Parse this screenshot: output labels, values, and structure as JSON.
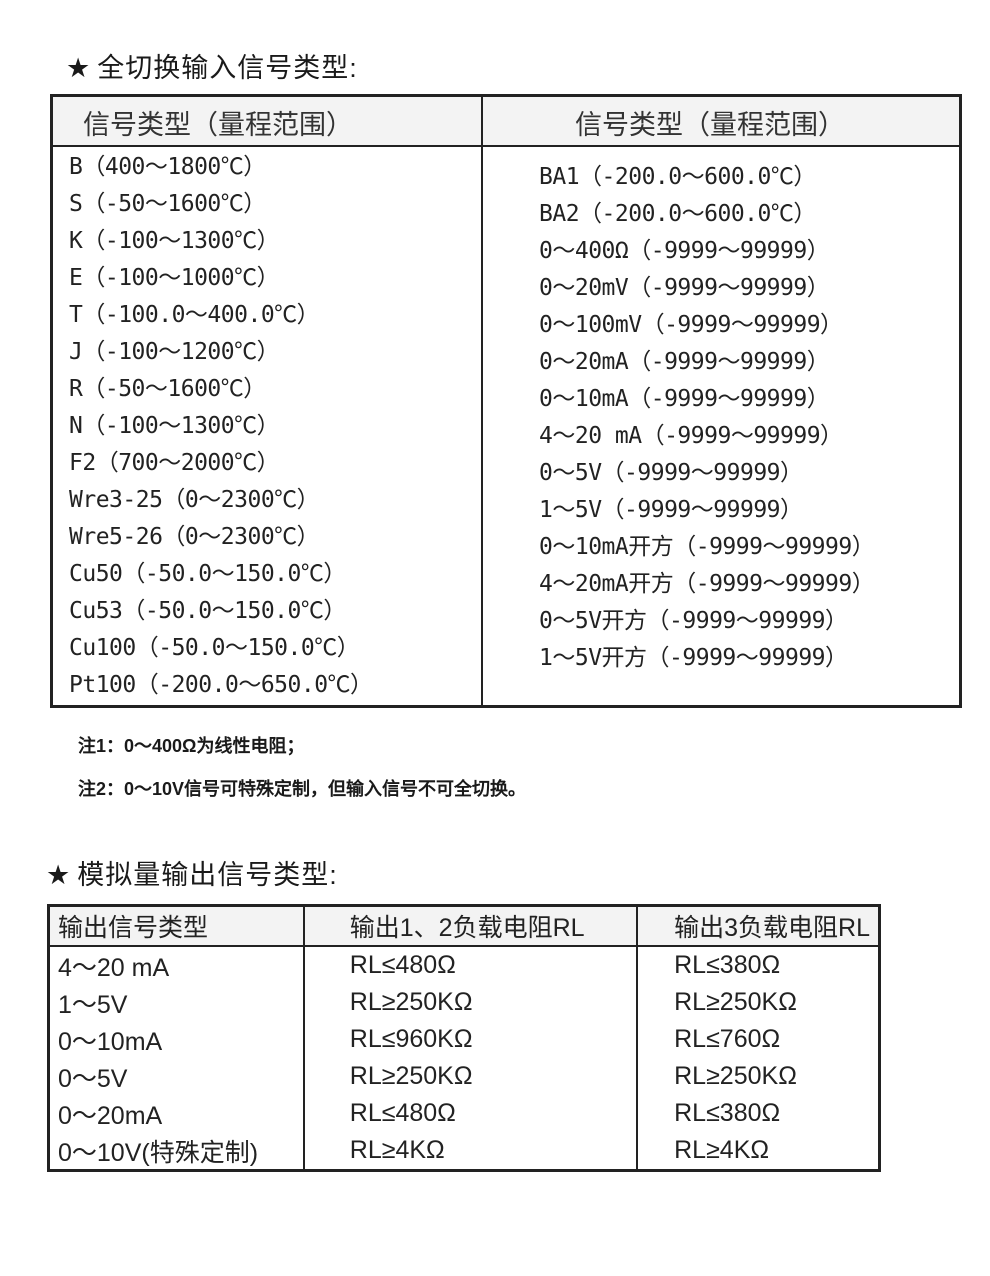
{
  "section1": {
    "title": "全切换输入信号类型:",
    "star": "★",
    "header_left": "信号类型（量程范围）",
    "header_right": "信号类型（量程范围）",
    "left_items": [
      "B（400～1800℃）",
      "S（-50～1600℃）",
      "K（-100～1300℃）",
      "E（-100～1000℃）",
      "T（-100.0～400.0℃）",
      "J（-100～1200℃）",
      "R（-50～1600℃）",
      "N（-100～1300℃）",
      "F2（700～2000℃）",
      "Wre3-25（0～2300℃）",
      "Wre5-26（0～2300℃）",
      "Cu50（-50.0～150.0℃）",
      "Cu53（-50.0～150.0℃）",
      "Cu100（-50.0～150.0℃）",
      "Pt100（-200.0～650.0℃）"
    ],
    "right_items": [
      "BA1（-200.0～600.0℃）",
      "BA2（-200.0～600.0℃）",
      "0～400Ω（-9999～99999）",
      "0～20mV（-9999～99999）",
      "0～100mV（-9999～99999）",
      "0～20mA（-9999～99999）",
      "0～10mA（-9999～99999）",
      "4～20 mA（-9999～99999）",
      "0～5V（-9999～99999）",
      "1～5V（-9999～99999）",
      "0～10mA开方（-9999～99999）",
      "4～20mA开方（-9999～99999）",
      "0～5V开方（-9999～99999）",
      "1～5V开方（-9999～99999）"
    ],
    "notes": [
      "注1：0～400Ω为线性电阻；",
      "注2：0～10V信号可特殊定制，但输入信号不可全切换。"
    ]
  },
  "section2": {
    "title": "模拟量输出信号类型:",
    "star": "★",
    "headers": [
      "输出信号类型",
      "输出1、2负载电阻RL",
      "输出3负载电阻RL"
    ],
    "rows": [
      [
        "4～20 mA",
        "RL≤480Ω",
        "RL≤380Ω"
      ],
      [
        "1～5V",
        "RL≥250KΩ",
        "RL≥250KΩ"
      ],
      [
        "0～10mA",
        "RL≤960KΩ",
        "RL≤760Ω"
      ],
      [
        "0～5V",
        "RL≥250KΩ",
        "RL≥250KΩ"
      ],
      [
        "0～20mA",
        "RL≤480Ω",
        "RL≤380Ω"
      ],
      [
        "0～10V(特殊定制)",
        "RL≥4KΩ",
        "RL≥4KΩ"
      ]
    ]
  }
}
